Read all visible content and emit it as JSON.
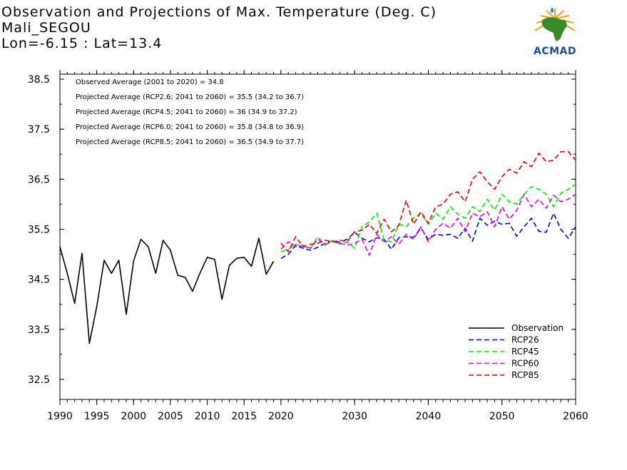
{
  "header": {
    "title": "Observation and Projections of Max. Temperature (Deg. C)",
    "location": "Mali_SEGOU",
    "coords": "Lon=-6.15 : Lat=13.4"
  },
  "logo": {
    "text": "ACMAD",
    "icon": "africa-map-sun-logo"
  },
  "colors": {
    "Observation": "#000000",
    "RCP26": "#0000dd",
    "RCP45": "#00ee00",
    "RCP60": "#ee00ee",
    "RCP85": "#ee0000"
  },
  "annotations": [
    "Observed Average (2001 to 2020) = 34.8",
    "Projected Average (RCP2.6; 2041 to 2060) = 35.5 (34.2 to 36.7)",
    "Projected Average (RCP4.5; 2041 to 2060) = 36 (34.9 to 37.2)",
    "Projected Average (RCP6.0; 2041 to 2060) = 35.8 (34.8 to 36.9)",
    "Projected Average (RCP8.5; 2041 to 2060) = 36.5 (34.9 to 37.7)"
  ],
  "chart_data": {
    "type": "line",
    "title": "Observation and Projections of Max. Temperature (Deg. C)",
    "xlabel": "",
    "ylabel": "",
    "xlim": [
      1990,
      2060
    ],
    "ylim": [
      32.1,
      38.6
    ],
    "x_ticks": [
      1990,
      1995,
      2000,
      2005,
      2010,
      2015,
      2020,
      2030,
      2040,
      2050,
      2060
    ],
    "y_ticks": [
      32.5,
      33.5,
      34.5,
      35.5,
      36.5,
      37.5,
      38.5
    ],
    "legend_position": "bottom-right",
    "series": [
      {
        "name": "Observation",
        "style": "solid",
        "x": [
          1990,
          1991,
          1992,
          1993,
          1994,
          1995,
          1996,
          1997,
          1998,
          1999,
          2000,
          2001,
          2002,
          2003,
          2004,
          2005,
          2006,
          2007,
          2008,
          2009,
          2010,
          2011,
          2012,
          2013,
          2014,
          2015,
          2016,
          2017,
          2018,
          2019
        ],
        "y": [
          35.15,
          34.62,
          34.02,
          35.02,
          33.22,
          33.95,
          34.88,
          34.62,
          34.88,
          33.8,
          34.87,
          35.3,
          35.15,
          34.62,
          35.28,
          35.08,
          34.58,
          34.54,
          34.26,
          34.62,
          34.94,
          34.9,
          34.1,
          34.78,
          34.92,
          34.94,
          34.76,
          35.32,
          34.6,
          34.86
        ]
      },
      {
        "name": "RCP26",
        "style": "dashed",
        "x": [
          2020,
          2021,
          2022,
          2023,
          2024,
          2025,
          2026,
          2027,
          2028,
          2029,
          2030,
          2031,
          2032,
          2033,
          2034,
          2035,
          2036,
          2037,
          2038,
          2039,
          2040,
          2041,
          2042,
          2043,
          2044,
          2045,
          2046,
          2047,
          2048,
          2049,
          2050,
          2051,
          2052,
          2053,
          2054,
          2055,
          2056,
          2057,
          2058,
          2059,
          2060
        ],
        "y": [
          34.92,
          35.0,
          35.18,
          35.12,
          35.08,
          35.14,
          35.22,
          35.27,
          35.24,
          35.3,
          35.44,
          35.32,
          35.25,
          35.33,
          35.3,
          35.1,
          35.33,
          35.35,
          35.34,
          35.52,
          35.3,
          35.4,
          35.38,
          35.4,
          35.32,
          35.52,
          35.26,
          35.72,
          35.58,
          35.66,
          35.6,
          35.62,
          35.36,
          35.55,
          35.72,
          35.46,
          35.44,
          35.82,
          35.5,
          35.32,
          35.55
        ]
      },
      {
        "name": "RCP45",
        "style": "dashed",
        "x": [
          2020,
          2021,
          2022,
          2023,
          2024,
          2025,
          2026,
          2027,
          2028,
          2029,
          2030,
          2031,
          2032,
          2033,
          2034,
          2035,
          2036,
          2037,
          2038,
          2039,
          2040,
          2041,
          2042,
          2043,
          2044,
          2045,
          2046,
          2047,
          2048,
          2049,
          2050,
          2051,
          2052,
          2053,
          2054,
          2055,
          2056,
          2057,
          2058,
          2059,
          2060
        ],
        "y": [
          35.05,
          35.1,
          35.2,
          35.15,
          35.12,
          35.35,
          35.18,
          35.28,
          35.2,
          35.24,
          35.12,
          35.55,
          35.65,
          35.82,
          35.28,
          35.25,
          35.6,
          35.55,
          35.72,
          35.82,
          35.6,
          35.82,
          35.7,
          35.95,
          35.8,
          35.72,
          35.95,
          35.85,
          36.1,
          35.88,
          36.2,
          36.05,
          36.0,
          36.2,
          36.35,
          36.3,
          36.2,
          35.95,
          36.22,
          36.3,
          36.4
        ]
      },
      {
        "name": "RCP60",
        "style": "dashed",
        "x": [
          2020,
          2021,
          2022,
          2023,
          2024,
          2025,
          2026,
          2027,
          2028,
          2029,
          2030,
          2031,
          2032,
          2033,
          2034,
          2035,
          2036,
          2037,
          2038,
          2039,
          2040,
          2041,
          2042,
          2043,
          2044,
          2045,
          2046,
          2047,
          2048,
          2049,
          2050,
          2051,
          2052,
          2053,
          2054,
          2055,
          2056,
          2057,
          2058,
          2059,
          2060
        ],
        "y": [
          35.1,
          35.25,
          35.15,
          35.18,
          35.12,
          35.3,
          35.2,
          35.25,
          35.22,
          35.18,
          35.22,
          35.3,
          34.98,
          35.4,
          35.25,
          35.35,
          35.2,
          35.4,
          35.3,
          35.55,
          35.25,
          35.5,
          35.62,
          35.52,
          35.72,
          35.45,
          35.82,
          35.75,
          35.85,
          35.55,
          35.95,
          35.7,
          35.88,
          36.2,
          35.95,
          36.1,
          35.92,
          36.18,
          36.05,
          36.1,
          36.2
        ]
      },
      {
        "name": "RCP85",
        "style": "dashed",
        "x": [
          2020,
          2021,
          2022,
          2023,
          2024,
          2025,
          2026,
          2027,
          2028,
          2029,
          2030,
          2031,
          2032,
          2033,
          2034,
          2035,
          2036,
          2037,
          2038,
          2039,
          2040,
          2041,
          2042,
          2043,
          2044,
          2045,
          2046,
          2047,
          2048,
          2049,
          2050,
          2051,
          2052,
          2053,
          2054,
          2055,
          2056,
          2057,
          2058,
          2059,
          2060
        ],
        "y": [
          35.22,
          35.05,
          35.35,
          35.15,
          35.2,
          35.22,
          35.28,
          35.25,
          35.28,
          35.25,
          35.45,
          35.48,
          35.6,
          35.42,
          35.7,
          35.45,
          35.58,
          36.08,
          35.6,
          35.85,
          35.62,
          35.95,
          36.0,
          36.2,
          36.25,
          36.05,
          36.5,
          36.65,
          36.45,
          36.3,
          36.55,
          36.7,
          36.62,
          36.85,
          36.75,
          37.02,
          36.85,
          36.88,
          37.05,
          37.05,
          36.88
        ]
      }
    ]
  }
}
